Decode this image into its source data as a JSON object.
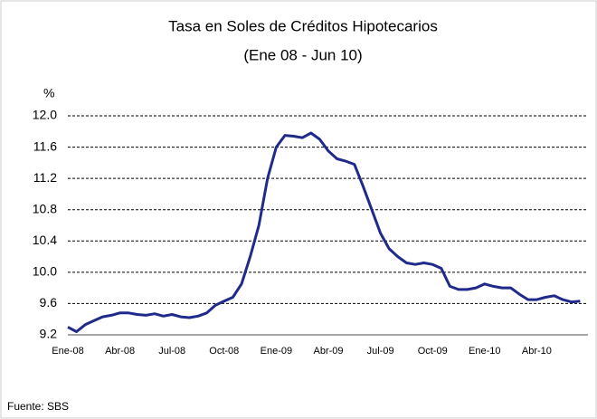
{
  "chart_data": {
    "type": "line",
    "title": "Tasa en Soles de Créditos Hipotecarios",
    "subtitle": "(Ene 08 - Jun 10)",
    "y_unit": "%",
    "source": "Fuente: SBS",
    "categories": [
      "Ene-08",
      null,
      null,
      null,
      null,
      null,
      "Abr-08",
      null,
      null,
      null,
      null,
      null,
      "Jul-08",
      null,
      null,
      null,
      null,
      null,
      "Oct-08",
      null,
      null,
      null,
      null,
      null,
      "Ene-09",
      null,
      null,
      null,
      null,
      null,
      "Abr-09",
      null,
      null,
      null,
      null,
      null,
      "Jul-09",
      null,
      null,
      null,
      null,
      null,
      "Oct-09",
      null,
      null,
      null,
      null,
      null,
      "Ene-10",
      null,
      null,
      null,
      null,
      null,
      "Abr-10",
      null,
      null,
      null,
      null,
      null
    ],
    "series": [
      {
        "color": "#1f2a8a",
        "values": [
          9.3,
          9.24,
          9.33,
          9.38,
          9.43,
          9.45,
          9.48,
          9.48,
          9.46,
          9.45,
          9.47,
          9.44,
          9.46,
          9.43,
          9.42,
          9.44,
          9.48,
          9.58,
          9.63,
          9.68,
          9.85,
          10.2,
          10.6,
          11.2,
          11.6,
          11.75,
          11.74,
          11.72,
          11.78,
          11.7,
          11.55,
          11.45,
          11.42,
          11.38,
          11.1,
          10.8,
          10.5,
          10.3,
          10.2,
          10.12,
          10.1,
          10.12,
          10.1,
          10.05,
          9.82,
          9.78,
          9.78,
          9.8,
          9.85,
          9.82,
          9.8,
          9.8,
          9.72,
          9.65,
          9.65,
          9.68,
          9.7,
          9.65,
          9.62,
          9.63
        ]
      }
    ],
    "ylim": [
      9.2,
      12.0
    ],
    "yticks": [
      9.2,
      9.6,
      {
        "value": 10.0,
        "label": "10.0"
      },
      10.4,
      10.8,
      11.2,
      11.6,
      {
        "value": 12.0,
        "label": "12.0"
      }
    ],
    "grid": true
  }
}
